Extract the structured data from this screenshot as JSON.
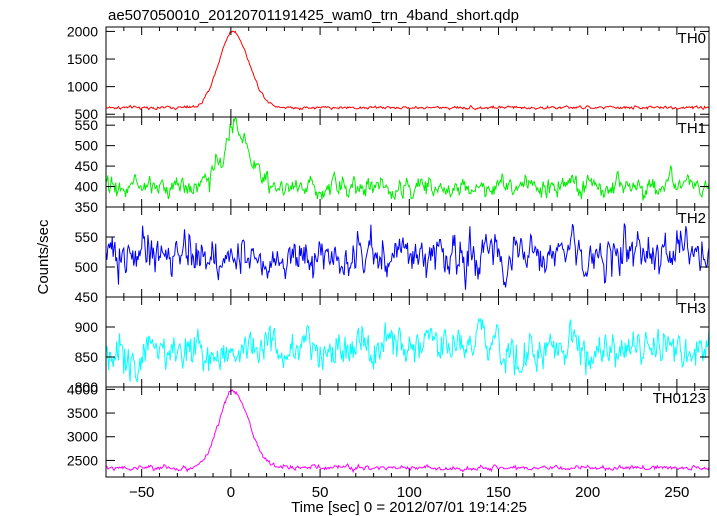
{
  "chart_data": {
    "type": "line",
    "title": "ae507050010_20120701191425_wam0_trn_4band_short.qdp",
    "xlabel": "Time [sec] 0 = 2012/07/01 19:14:25",
    "ylabel": "Counts/sec",
    "xlim": [
      -70,
      268
    ],
    "xticks": [
      -50,
      0,
      50,
      100,
      150,
      200,
      250
    ],
    "grid": false,
    "panels": [
      {
        "name": "TH0",
        "color": "#ff0000",
        "ylim": [
          450,
          2080
        ],
        "yticks": [
          500,
          1000,
          1500,
          2000
        ],
        "baseline": 620,
        "noise": 25,
        "peak_time": 1,
        "peak_value": 2000,
        "rise": 7,
        "decay": 9
      },
      {
        "name": "TH1",
        "color": "#00ee00",
        "ylim": [
          350,
          570
        ],
        "yticks": [
          350,
          400,
          450,
          500,
          550
        ],
        "baseline": 400,
        "noise": 22,
        "peak_time": 2,
        "peak_value": 545,
        "rise": 6,
        "decay": 8
      },
      {
        "name": "TH2",
        "color": "#0000ff",
        "ylim": [
          450,
          600
        ],
        "yticks": [
          450,
          500,
          550
        ],
        "baseline": 520,
        "noise": 30,
        "peak_time": null,
        "peak_value": null,
        "rise": null,
        "decay": null
      },
      {
        "name": "TH3",
        "color": "#00ffff",
        "ylim": [
          800,
          950
        ],
        "yticks": [
          800,
          850,
          900
        ],
        "baseline": 862,
        "noise": 30,
        "peak_time": null,
        "peak_value": null,
        "rise": null,
        "decay": null
      },
      {
        "name": "TH0123",
        "color": "#ff00ff",
        "ylim": [
          2150,
          4050
        ],
        "yticks": [
          2500,
          3000,
          3500,
          4000
        ],
        "baseline": 2340,
        "noise": 45,
        "peak_time": 1,
        "peak_value": 3950,
        "rise": 7,
        "decay": 9
      }
    ]
  }
}
